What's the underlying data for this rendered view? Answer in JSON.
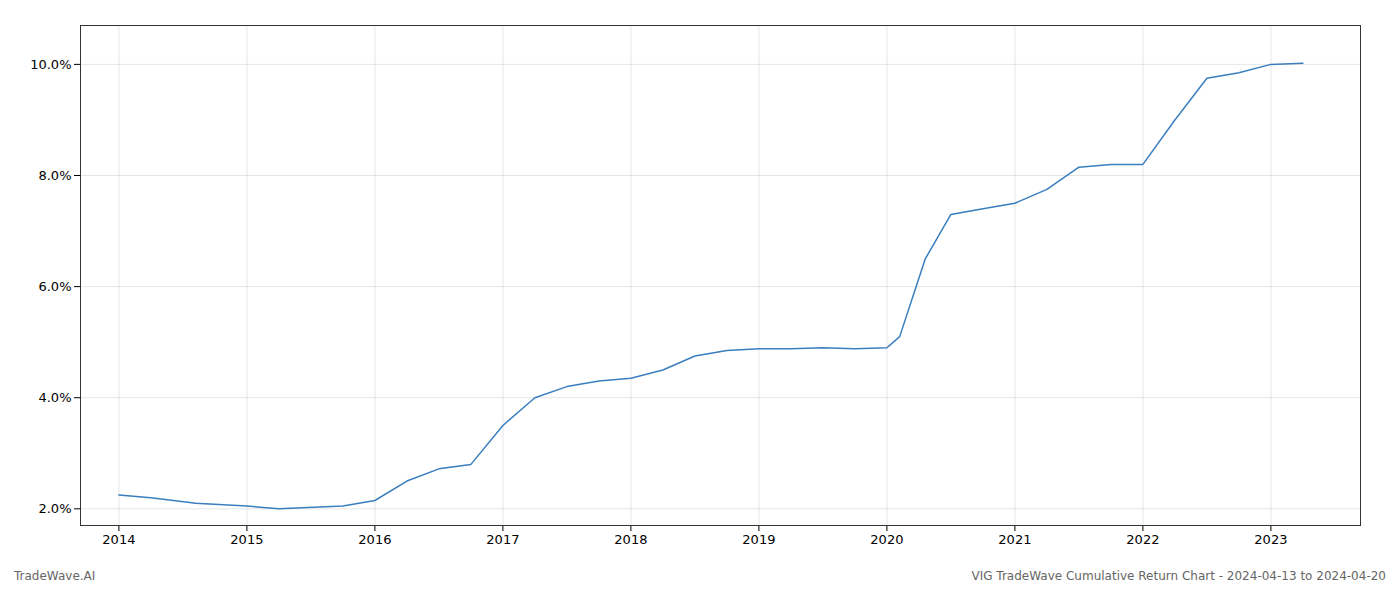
{
  "chart_data": {
    "type": "line",
    "x": [
      2014.0,
      2014.25,
      2014.6,
      2015.0,
      2015.25,
      2015.75,
      2016.0,
      2016.25,
      2016.5,
      2016.75,
      2017.0,
      2017.25,
      2017.5,
      2017.75,
      2018.0,
      2018.25,
      2018.5,
      2018.75,
      2019.0,
      2019.25,
      2019.5,
      2019.75,
      2020.0,
      2020.1,
      2020.3,
      2020.5,
      2020.75,
      2021.0,
      2021.25,
      2021.5,
      2021.75,
      2022.0,
      2022.25,
      2022.5,
      2022.75,
      2023.0,
      2023.25
    ],
    "values": [
      2.25,
      2.2,
      2.1,
      2.05,
      2.0,
      2.05,
      2.15,
      2.5,
      2.72,
      2.8,
      3.5,
      4.0,
      4.2,
      4.3,
      4.35,
      4.5,
      4.75,
      4.85,
      4.88,
      4.88,
      4.9,
      4.88,
      4.9,
      5.1,
      6.5,
      7.3,
      7.4,
      7.5,
      7.75,
      8.15,
      8.2,
      8.2,
      9.0,
      9.75,
      9.85,
      10.0,
      10.02
    ],
    "color": "#3a7ebf",
    "xlim": [
      2013.7,
      2023.7
    ],
    "xticks": [
      2014,
      2015,
      2016,
      2017,
      2018,
      2019,
      2020,
      2021,
      2022,
      2023
    ],
    "ylim": [
      1.7,
      10.7
    ],
    "yticks": [
      {
        "value": 2.0,
        "label": "2.0%"
      },
      {
        "value": 4.0,
        "label": "4.0%"
      },
      {
        "value": 6.0,
        "label": "6.0%"
      },
      {
        "value": 8.0,
        "label": "8.0%"
      },
      {
        "value": 10.0,
        "label": "10.0%"
      }
    ],
    "grid": true,
    "annotations": [
      "TradeWave.AI",
      "VIG TradeWave Cumulative Return Chart - 2024-04-13 to 2024-04-20"
    ]
  }
}
